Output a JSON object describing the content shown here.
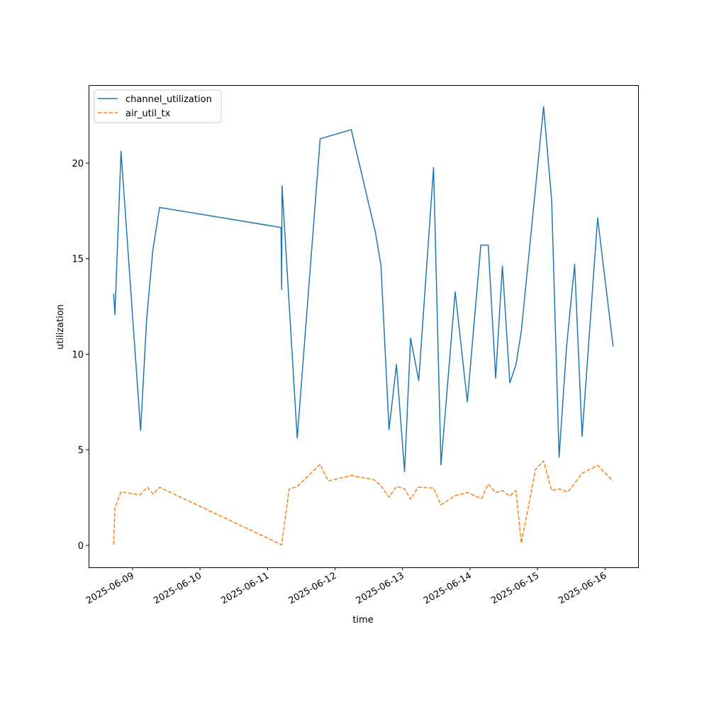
{
  "chart_data": {
    "type": "line",
    "title": "",
    "xlabel": "time",
    "ylabel": "utilization",
    "x_unit": "days since 2025-06-09 00:00",
    "xlim": [
      -0.65,
      7.49
    ],
    "ylim": [
      -1.15,
      24.08
    ],
    "xticks": [
      {
        "value": 0,
        "label": "2025-06-09"
      },
      {
        "value": 1,
        "label": "2025-06-10"
      },
      {
        "value": 2,
        "label": "2025-06-11"
      },
      {
        "value": 3,
        "label": "2025-06-12"
      },
      {
        "value": 4,
        "label": "2025-06-13"
      },
      {
        "value": 5,
        "label": "2025-06-14"
      },
      {
        "value": 6,
        "label": "2025-06-15"
      },
      {
        "value": 7,
        "label": "2025-06-16"
      }
    ],
    "yticks": [
      {
        "value": 0,
        "label": "0"
      },
      {
        "value": 5,
        "label": "5"
      },
      {
        "value": 10,
        "label": "10"
      },
      {
        "value": 15,
        "label": "15"
      },
      {
        "value": 20,
        "label": "20"
      }
    ],
    "grid": false,
    "legend_position": "top-left",
    "series": [
      {
        "name": "channel_utilization",
        "color": "#1f77b4",
        "style": "solid",
        "x": [
          -0.28,
          -0.26,
          -0.17,
          0.12,
          0.21,
          0.3,
          0.4,
          2.2,
          2.21,
          2.215,
          2.44,
          2.78,
          3.24,
          3.6,
          3.68,
          3.8,
          3.91,
          4.03,
          4.12,
          4.24,
          4.46,
          4.57,
          4.78,
          4.96,
          5.16,
          5.27,
          5.38,
          5.48,
          5.59,
          5.68,
          5.76,
          6.09,
          6.21,
          6.32,
          6.43,
          6.55,
          6.66,
          6.89,
          7.12
        ],
        "y": [
          13.17,
          12.08,
          20.62,
          6.01,
          11.85,
          15.39,
          17.68,
          16.63,
          13.38,
          18.8,
          5.61,
          21.27,
          21.75,
          16.36,
          14.67,
          6.06,
          9.47,
          3.86,
          10.84,
          8.63,
          19.77,
          4.21,
          13.27,
          7.51,
          15.71,
          15.71,
          8.75,
          14.62,
          8.5,
          9.44,
          11.21,
          22.95,
          18.05,
          4.61,
          10.4,
          14.7,
          5.71,
          17.13,
          10.4
        ]
      },
      {
        "name": "air_util_tx",
        "color": "#ff7f0e",
        "style": "dashed",
        "x": [
          -0.28,
          -0.26,
          -0.17,
          0.11,
          0.22,
          0.31,
          0.4,
          2.21,
          2.32,
          2.44,
          2.78,
          2.9,
          3.24,
          3.57,
          3.67,
          3.8,
          3.91,
          4.03,
          4.12,
          4.23,
          4.46,
          4.57,
          4.78,
          4.96,
          5.17,
          5.27,
          5.38,
          5.48,
          5.59,
          5.68,
          5.76,
          5.97,
          6.09,
          6.21,
          6.32,
          6.45,
          6.66,
          6.89,
          7.12
        ],
        "y": [
          0.03,
          1.96,
          2.81,
          2.63,
          3.04,
          2.68,
          3.04,
          0.03,
          2.95,
          3.08,
          4.24,
          3.37,
          3.65,
          3.44,
          3.17,
          2.52,
          3.08,
          2.97,
          2.41,
          3.04,
          3.0,
          2.12,
          2.6,
          2.76,
          2.44,
          3.21,
          2.76,
          2.87,
          2.57,
          2.87,
          0.11,
          3.97,
          4.42,
          2.87,
          2.95,
          2.79,
          3.77,
          4.18,
          3.37
        ]
      }
    ]
  }
}
